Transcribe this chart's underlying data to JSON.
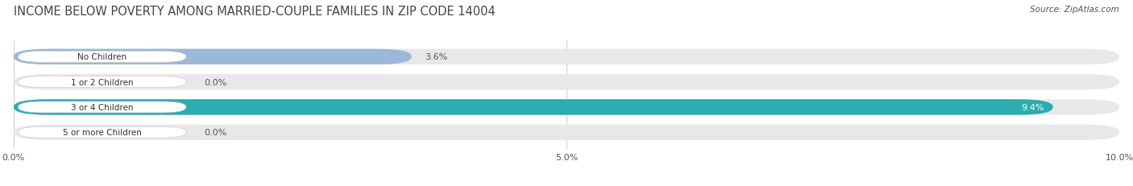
{
  "title": "INCOME BELOW POVERTY AMONG MARRIED-COUPLE FAMILIES IN ZIP CODE 14004",
  "source": "Source: ZipAtlas.com",
  "categories": [
    "No Children",
    "1 or 2 Children",
    "3 or 4 Children",
    "5 or more Children"
  ],
  "values": [
    3.6,
    0.0,
    9.4,
    0.0
  ],
  "bar_colors": [
    "#9bb8d8",
    "#c4a0ba",
    "#2aacb0",
    "#aab4d8"
  ],
  "background_color": "#ffffff",
  "bar_bg_color": "#e8e8ea",
  "xlim": [
    0,
    10.0
  ],
  "xticks": [
    0.0,
    5.0,
    10.0
  ],
  "xticklabels": [
    "0.0%",
    "5.0%",
    "10.0%"
  ],
  "title_fontsize": 10.5,
  "label_fontsize": 7.5,
  "value_fontsize": 8,
  "bar_height": 0.62,
  "fig_width": 14.06,
  "fig_height": 2.32
}
